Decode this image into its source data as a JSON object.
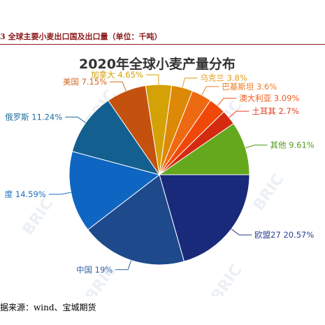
{
  "figure": {
    "caption": "3  全球主要小麦出口国及出口量（单位：千吨）",
    "source": "据来源：wind、宝城期货",
    "watermark": "BRIC"
  },
  "chart_data": {
    "type": "pie",
    "title": "2020年全球小麦产量分布",
    "slices": [
      {
        "label": "欧盟27",
        "value": 20.57,
        "color": "#1a2a7a",
        "text_color": "#2a3f8f"
      },
      {
        "label": "中国",
        "value": 19,
        "color": "#1e4a8c",
        "text_color": "#2f5fa8"
      },
      {
        "label": "度",
        "value": 14.59,
        "color": "#0e66c2",
        "text_color": "#1a6fc2"
      },
      {
        "label": "俄罗斯",
        "value": 11.24,
        "color": "#135f8f",
        "text_color": "#1f6fa3"
      },
      {
        "label": "美国",
        "value": 7.15,
        "color": "#c4520e",
        "text_color": "#d4661f"
      },
      {
        "label": "加拿大",
        "value": 4.65,
        "color": "#d4a106",
        "text_color": "#d4a106"
      },
      {
        "label": "乌克兰",
        "value": 3.8,
        "color": "#dd8806",
        "text_color": "#e39a1a"
      },
      {
        "label": "巴基斯坦",
        "value": 3.6,
        "color": "#ee6a12",
        "text_color": "#f07a24"
      },
      {
        "label": "澳大利亚",
        "value": 3.09,
        "color": "#f04808",
        "text_color": "#f05a1c"
      },
      {
        "label": "土耳其",
        "value": 2.7,
        "color": "#d32a10",
        "text_color": "#e2401f"
      },
      {
        "label": "其他",
        "value": 9.61,
        "color": "#64a81e",
        "text_color": "#4f9a1a"
      }
    ]
  }
}
